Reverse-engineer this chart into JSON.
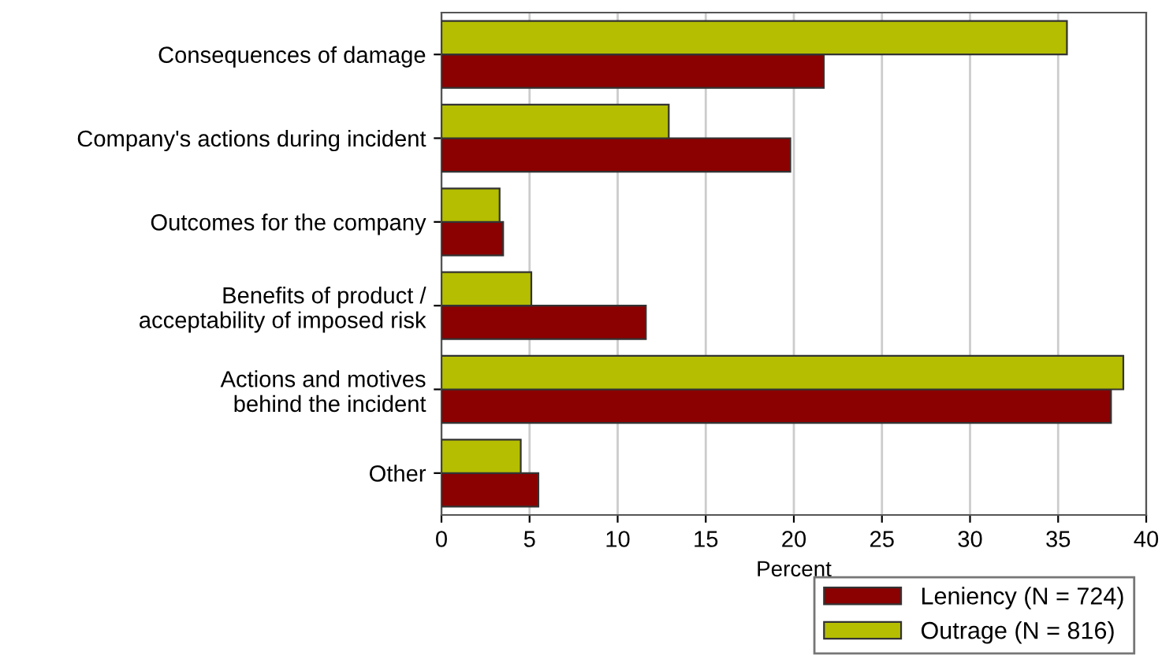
{
  "chart_data": {
    "type": "bar",
    "orientation": "horizontal",
    "xlabel": "Percent",
    "categories": [
      "Consequences of damage",
      "Company's actions during incident",
      "Outcomes for the company",
      "Benefits of product /\nacceptability of imposed risk",
      "Actions and motives\nbehind the incident",
      "Other"
    ],
    "series": [
      {
        "name": "Leniency (N = 724)",
        "color": "#8b0000",
        "values": [
          21.7,
          19.8,
          3.5,
          11.6,
          38.0,
          5.5
        ]
      },
      {
        "name": "Outrage (N = 816)",
        "color": "#b5be00",
        "values": [
          35.5,
          12.9,
          3.3,
          5.1,
          38.7,
          4.5
        ]
      }
    ],
    "xlim": [
      0,
      40
    ],
    "xticks": [
      0,
      5,
      10,
      15,
      20,
      25,
      30,
      35,
      40
    ],
    "grid": "x",
    "legend": "bottom right"
  }
}
